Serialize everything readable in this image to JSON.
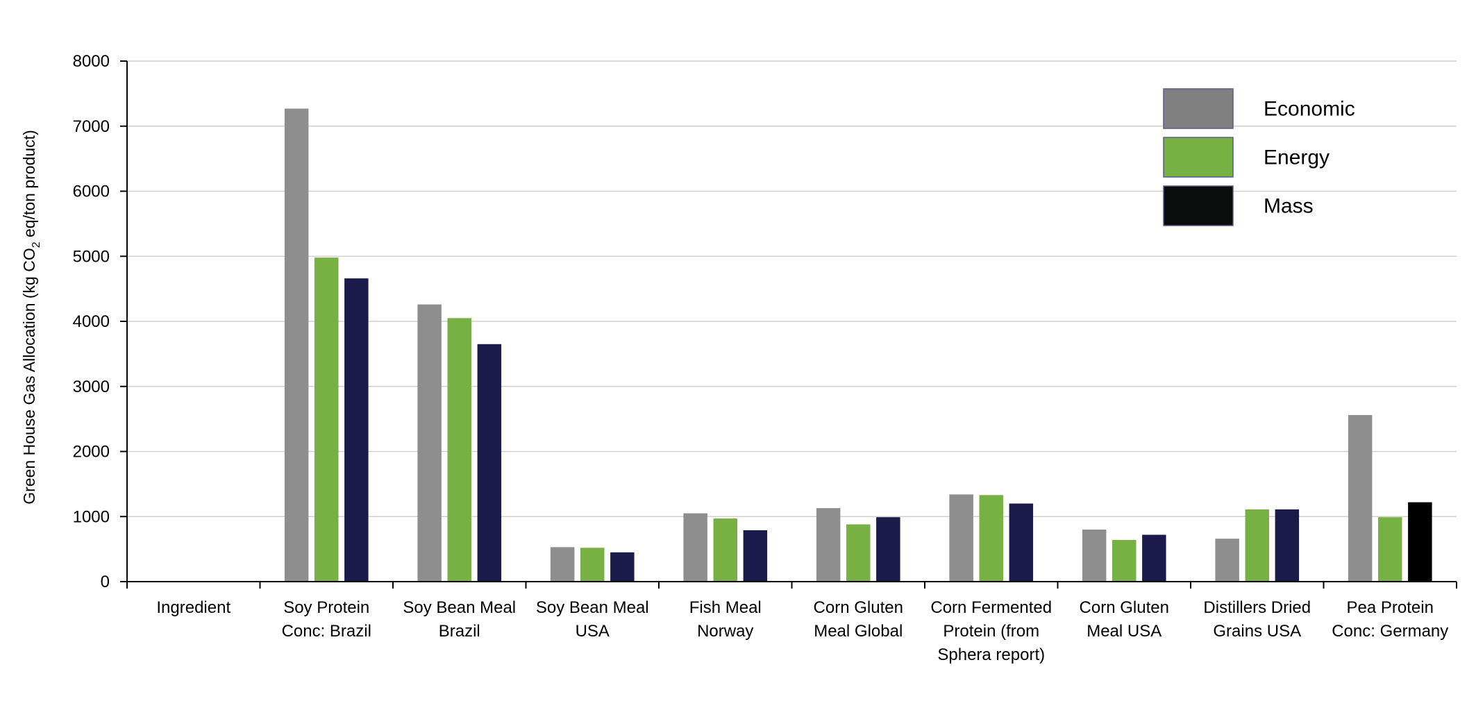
{
  "chart_data": {
    "type": "bar",
    "title": "",
    "xlabel": "",
    "ylabel": {
      "prefix": "Green House Gas Allocation (kg CO",
      "subscript": "2",
      "suffix": " eq/ton product)"
    },
    "ylim": [
      0,
      8000
    ],
    "yticks": [
      "0",
      "1000",
      "2000",
      "3000",
      "4000",
      "5000",
      "6000",
      "7000",
      "8000"
    ],
    "grid": true,
    "legend_position": "top-right",
    "categories": [
      [
        "Ingredient"
      ],
      [
        "Soy Protein",
        "Conc: Brazil"
      ],
      [
        "Soy Bean Meal",
        "Brazil"
      ],
      [
        "Soy Bean Meal",
        "USA"
      ],
      [
        "Fish Meal",
        "Norway"
      ],
      [
        "Corn Gluten",
        "Meal Global"
      ],
      [
        "Corn Fermented",
        "Protein (from",
        "Sphera report)"
      ],
      [
        "Corn Gluten",
        "Meal USA"
      ],
      [
        "Distillers Dried",
        "Grains USA"
      ],
      [
        "Pea Protein",
        "Conc: Germany"
      ]
    ],
    "series": [
      {
        "name": "Economic",
        "color": "#8e8e8e",
        "values": [
          null,
          7270,
          4260,
          530,
          1050,
          1130,
          1340,
          800,
          660,
          2560
        ]
      },
      {
        "name": "Energy",
        "color": "#77b143",
        "values": [
          null,
          4980,
          4050,
          520,
          970,
          880,
          1330,
          640,
          1110,
          990
        ]
      },
      {
        "name": "Mass",
        "color": "#1c1a4a",
        "values": [
          null,
          4660,
          3650,
          450,
          790,
          990,
          1200,
          720,
          1110,
          1220
        ]
      }
    ],
    "legend_colors": [
      "#808080",
      "#77b143",
      "#0b0d0c"
    ],
    "point_overrides": [
      {
        "series": 2,
        "index": 9,
        "color": "#000000"
      }
    ]
  }
}
